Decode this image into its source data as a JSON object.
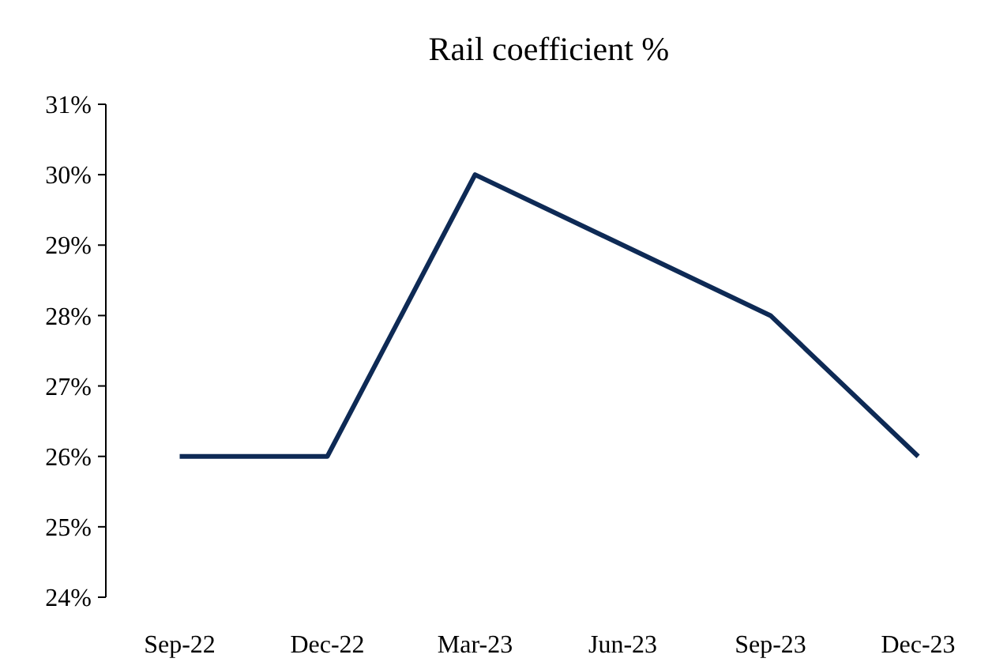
{
  "chart_data": {
    "type": "line",
    "title": "Rail coefficient %",
    "categories": [
      "Sep-22",
      "Dec-22",
      "Mar-23",
      "Jun-23",
      "Sep-23",
      "Dec-23"
    ],
    "series": [
      {
        "color": "#0e2a55",
        "values": [
          26,
          26,
          30,
          29,
          28,
          26
        ]
      }
    ],
    "ylim": [
      24,
      31
    ],
    "yticks": [
      {
        "value": 24,
        "label": "24%"
      },
      {
        "value": 25,
        "label": "25%"
      },
      {
        "value": 26,
        "label": "26%"
      },
      {
        "value": 27,
        "label": "27%"
      },
      {
        "value": 28,
        "label": "28%"
      },
      {
        "value": 29,
        "label": "29%"
      },
      {
        "value": 30,
        "label": "30%"
      },
      {
        "value": 31,
        "label": "31%"
      }
    ],
    "grid": false,
    "marker": "none",
    "line_style": "solid"
  }
}
